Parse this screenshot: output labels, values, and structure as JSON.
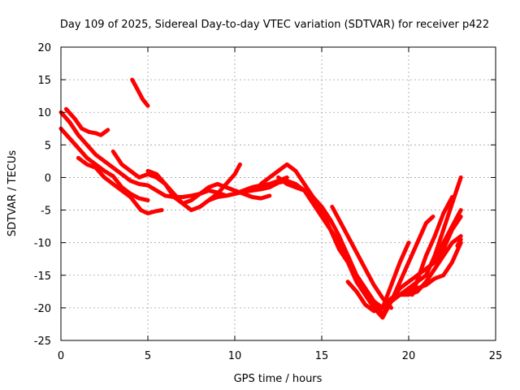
{
  "chart_data": {
    "type": "line",
    "title": "Day 109 of 2025, Sidereal Day-to-day VTEC variation (SDTVAR) for receiver p422",
    "xlabel": "GPS time / hours",
    "ylabel": "SDTVAR / TECUs",
    "xlim": [
      0,
      25
    ],
    "ylim": [
      -25,
      20
    ],
    "xticks": [
      0,
      5,
      10,
      15,
      20,
      25
    ],
    "yticks": [
      -25,
      -20,
      -15,
      -10,
      -5,
      0,
      5,
      10,
      15,
      20
    ],
    "grid": true,
    "legend": "none",
    "color": "#ff0000",
    "series": [
      {
        "x": [
          4.1,
          4.4,
          4.7,
          5.0
        ],
        "y": [
          15,
          13.5,
          12,
          11
        ]
      },
      {
        "x": [
          0.3,
          0.8,
          1.2,
          1.6,
          2.0,
          2.3,
          2.7
        ],
        "y": [
          10.5,
          9,
          7.5,
          7,
          6.8,
          6.5,
          7.3
        ]
      },
      {
        "x": [
          0.0,
          0.5,
          1.0,
          1.5,
          2.0,
          2.5,
          3.0,
          3.5,
          4.0,
          4.5,
          5.0,
          5.5,
          6.0,
          6.5,
          7.0,
          7.5,
          8.0,
          8.5,
          9.0,
          9.5,
          10.0,
          10.5,
          11.0,
          11.5,
          12.0,
          12.5,
          13.0,
          13.5,
          14.0,
          14.5,
          15.0
        ],
        "y": [
          10,
          8.5,
          6.5,
          5.0,
          3.5,
          2.5,
          1.5,
          0.5,
          -0.5,
          -1.0,
          -1.2,
          -2.0,
          -2.8,
          -3.0,
          -3.0,
          -2.8,
          -2.5,
          -2.0,
          -2.3,
          -2.8,
          -2.5,
          -2.2,
          -2.0,
          -1.8,
          -1.5,
          -0.8,
          -0.5,
          -1.0,
          -2.0,
          -3.5,
          -5.0
        ]
      },
      {
        "x": [
          0.0,
          0.5,
          1.0,
          1.5,
          2.0,
          2.5,
          3.0,
          3.5,
          4.0,
          4.5,
          5.0
        ],
        "y": [
          7.5,
          6,
          4.5,
          3,
          2,
          1,
          0.2,
          -1.5,
          -2.5,
          -3.2,
          -3.5
        ]
      },
      {
        "x": [
          1.0,
          1.5,
          2.0,
          2.5,
          3.0,
          3.5,
          4.0,
          4.3,
          4.6,
          5.0,
          5.4,
          5.8
        ],
        "y": [
          3,
          2,
          1.5,
          0,
          -1,
          -2,
          -3,
          -4,
          -5,
          -5.5,
          -5.2,
          -5.0
        ]
      },
      {
        "x": [
          3.0,
          3.5,
          4.0,
          4.5,
          5.0,
          5.5,
          6.0,
          6.5,
          7.0,
          7.5,
          8.0,
          8.5,
          9.0,
          9.5,
          10.0,
          10.5,
          11.0,
          11.5,
          12.0
        ],
        "y": [
          4,
          2,
          1,
          0,
          0.5,
          0,
          -1,
          -3,
          -4,
          -3.5,
          -2.5,
          -1.5,
          -1.0,
          -1.5,
          -2.0,
          -2.5,
          -3.0,
          -3.2,
          -2.8
        ]
      },
      {
        "x": [
          5.0,
          5.5,
          6.0,
          6.5,
          7.0,
          7.5,
          8.0,
          8.5,
          9.0,
          9.5,
          10.0,
          10.5,
          11.0,
          11.5,
          12.0,
          12.5,
          13.0
        ],
        "y": [
          1,
          0.5,
          -1,
          -2.5,
          -4,
          -5,
          -4.5,
          -3.5,
          -3.0,
          -2.8,
          -2.5,
          -2.0,
          -1.5,
          -1.2,
          -1.0,
          -0.5,
          0
        ]
      },
      {
        "x": [
          8.5,
          9.0,
          9.5,
          10.0,
          10.3
        ],
        "y": [
          -3.5,
          -2.5,
          -1.0,
          0.5,
          2.0
        ]
      },
      {
        "x": [
          11.5,
          12.0,
          12.5,
          13.0,
          13.5,
          14.0,
          14.5,
          15.0,
          15.5,
          16.0,
          16.5,
          17.0,
          17.5,
          18.0,
          18.5,
          19.0,
          19.5,
          20.0,
          20.5,
          21.0,
          21.5,
          22.0,
          22.5,
          23.0
        ],
        "y": [
          -1,
          0,
          1,
          2,
          1,
          -1,
          -3,
          -5,
          -8,
          -11,
          -13,
          -16,
          -18,
          -20,
          -21.5,
          -19,
          -18,
          -17.5,
          -17,
          -16.5,
          -15.5,
          -15,
          -13,
          -10
        ]
      },
      {
        "x": [
          12.5,
          13.0,
          13.5,
          14.0,
          14.5,
          15.0,
          15.5,
          16.0,
          16.5,
          17.0,
          17.5,
          18.0,
          18.5,
          19.0,
          19.5,
          20.0,
          20.5,
          21.0,
          21.5,
          22.0,
          22.5,
          23.0
        ],
        "y": [
          0,
          -1,
          -1.5,
          -2,
          -3,
          -4.5,
          -6.5,
          -9,
          -12,
          -15,
          -17,
          -19,
          -21,
          -19,
          -17,
          -16,
          -15,
          -14,
          -13,
          -11,
          -8,
          -6
        ]
      },
      {
        "x": [
          14.0,
          14.5,
          15.0,
          15.5,
          16.0,
          16.5,
          17.0,
          17.5,
          18.0,
          18.5,
          19.0,
          19.5,
          20.0,
          20.5,
          21.0
        ],
        "y": [
          -2,
          -4,
          -6,
          -8,
          -10,
          -12,
          -15,
          -17,
          -19,
          -20,
          -19,
          -18,
          -17,
          -16,
          -15
        ]
      },
      {
        "x": [
          15.6,
          16.0,
          16.5,
          17.0,
          17.5,
          18.0,
          18.5,
          19.0
        ],
        "y": [
          -4.5,
          -6.5,
          -9,
          -11.5,
          -14,
          -16.5,
          -18.5,
          -20
        ]
      },
      {
        "x": [
          16.5,
          17.0,
          17.5,
          18.0,
          18.5,
          19.0,
          19.5,
          20.0,
          20.5,
          21.0,
          21.5,
          22.0,
          22.5,
          23.0
        ],
        "y": [
          -16,
          -17.5,
          -19.5,
          -20.5,
          -20,
          -18.5,
          -18,
          -18,
          -17.5,
          -16,
          -14,
          -12,
          -10,
          -9
        ]
      },
      {
        "x": [
          18.5,
          19.0,
          19.5,
          20.0
        ],
        "y": [
          -20,
          -16.5,
          -13,
          -10
        ]
      },
      {
        "x": [
          19.0,
          19.5,
          20.0,
          20.5,
          21.0,
          21.4
        ],
        "y": [
          -19,
          -16,
          -13,
          -10,
          -7,
          -6
        ]
      },
      {
        "x": [
          20.2,
          20.6,
          21.0,
          21.5,
          22.0,
          22.5
        ],
        "y": [
          -18,
          -15,
          -12,
          -9,
          -5.5,
          -3
        ]
      },
      {
        "x": [
          21.0,
          21.5,
          22.0,
          22.5,
          23.0
        ],
        "y": [
          -15,
          -12,
          -8,
          -4,
          0
        ]
      },
      {
        "x": [
          21.5,
          22.0,
          22.5,
          23.0
        ],
        "y": [
          -13,
          -10,
          -7.5,
          -5
        ]
      },
      {
        "x": [
          22.8,
          23.0
        ],
        "y": [
          -10.5,
          -9.5
        ]
      }
    ]
  }
}
